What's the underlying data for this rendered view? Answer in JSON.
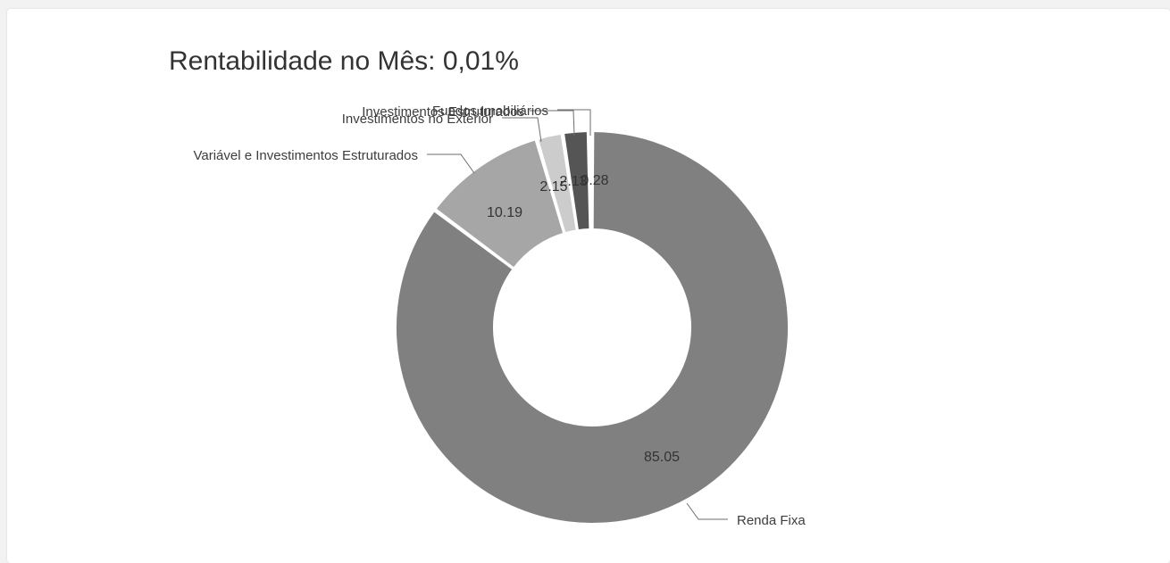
{
  "card": {
    "title": "Rentabilidade no Mês: 0,01%"
  },
  "chart_data": {
    "type": "pie",
    "donut": true,
    "title": "Rentabilidade no Mês: 0,01%",
    "categories": [
      "Renda Fixa",
      "Variável e Investimentos Estruturados",
      "Investimentos no Exterior",
      "Investimentos Estruturados",
      "Fundos Imobiliários"
    ],
    "values": [
      85.05,
      10.19,
      2.15,
      2.13,
      0.28
    ],
    "data_labels": [
      "85.05",
      "10.19",
      "2.15",
      "2.13",
      "0.28"
    ],
    "colors": [
      "#808080",
      "#a6a6a6",
      "#cccccc",
      "#555555",
      "#333333"
    ],
    "start_angle_deg": 0,
    "direction": "clockwise",
    "legend": "none"
  }
}
